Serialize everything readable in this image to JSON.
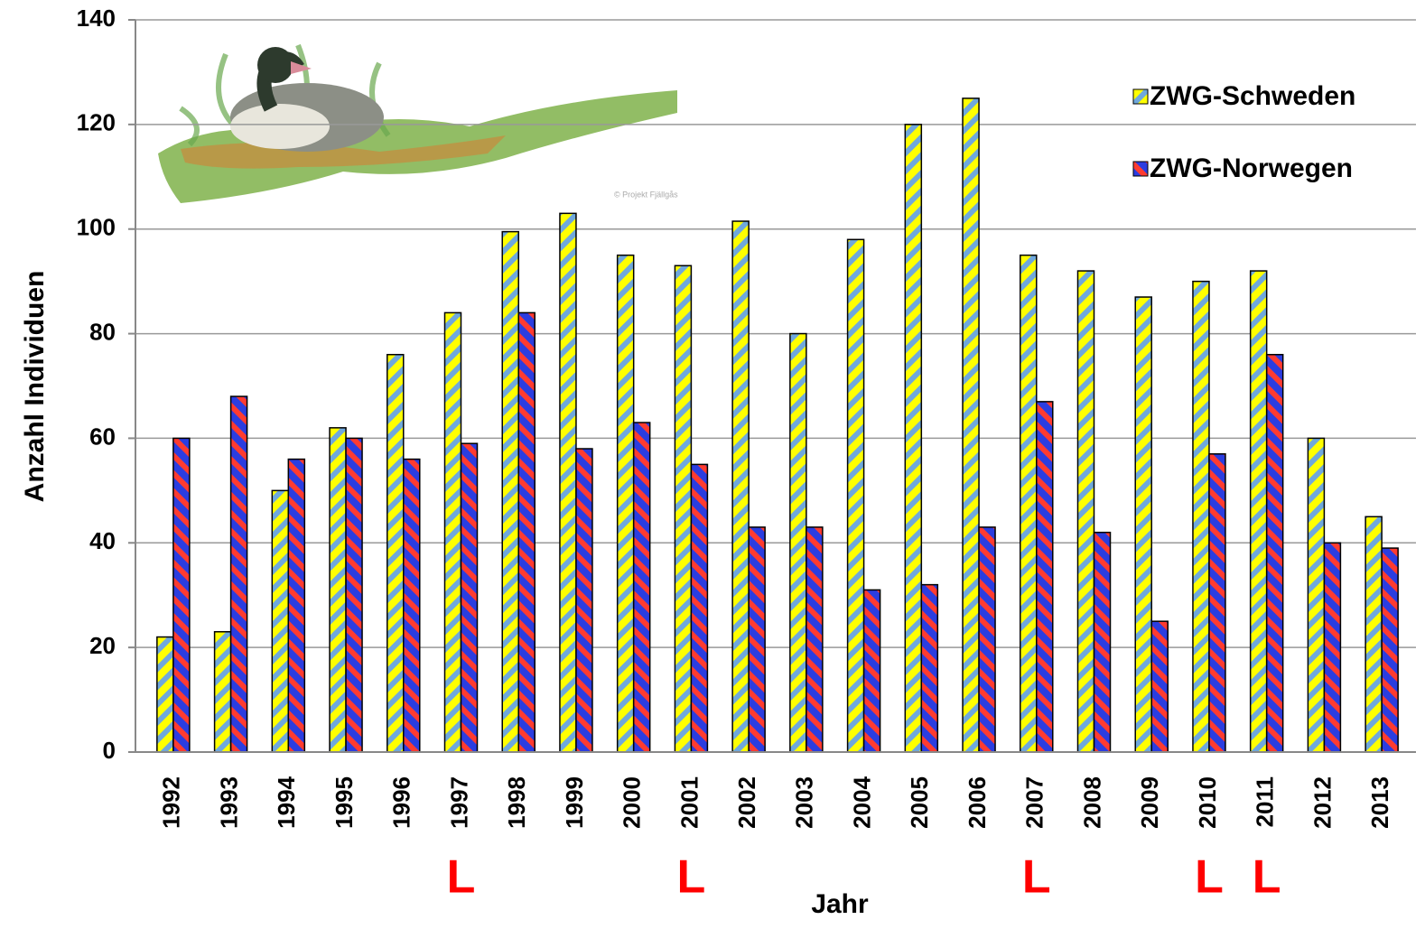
{
  "chart_data": {
    "type": "bar",
    "y_label": "Anzahl Individuen",
    "x_label": "Jahr",
    "categories": [
      "1992",
      "1993",
      "1994",
      "1995",
      "1996",
      "1997",
      "1998",
      "1999",
      "2000",
      "2001",
      "2002",
      "2003",
      "2004",
      "2005",
      "2006",
      "2007",
      "2008",
      "2009",
      "2010",
      "2011",
      "2012",
      "2013"
    ],
    "series": [
      {
        "name": "ZWG-Schweden",
        "color": "#ffff00",
        "hatch_color": "#6fa8dc",
        "values": [
          22,
          23,
          50,
          62,
          76,
          84,
          99.5,
          103,
          95,
          93,
          101.5,
          80,
          98,
          120,
          125,
          95,
          92,
          87,
          90,
          92,
          60,
          45
        ]
      },
      {
        "name": "ZWG-Norwegen",
        "color": "#2b3de0",
        "hatch_color": "#ff3b30",
        "values": [
          60,
          68,
          56,
          60,
          56,
          59,
          84,
          58,
          63,
          55,
          43,
          43,
          31,
          32,
          43,
          67,
          42,
          25,
          57,
          76,
          40,
          39
        ]
      }
    ],
    "ylim": [
      0,
      140
    ],
    "yticks": [
      0,
      20,
      40,
      60,
      80,
      100,
      120,
      140
    ],
    "grid": true,
    "legend": "top-right",
    "annotations": [
      {
        "text": "L",
        "x": "1997"
      },
      {
        "text": "L",
        "x": "2001"
      },
      {
        "text": "L",
        "x": "2007"
      },
      {
        "text": "L",
        "x": "2010"
      },
      {
        "text": "L",
        "x": "2011"
      }
    ],
    "annotation_color": "#ff0000",
    "image_credit": "© Projekt Fjällgås"
  }
}
